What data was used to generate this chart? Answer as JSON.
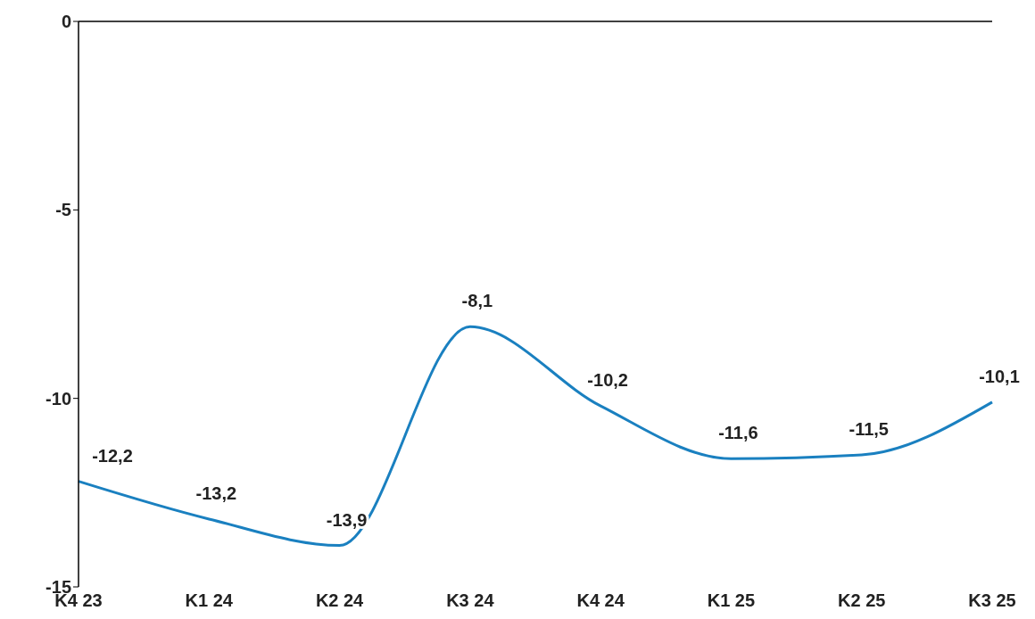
{
  "chart_data": {
    "type": "line",
    "categories": [
      "K4 23",
      "K1 24",
      "K2 24",
      "K3 24",
      "K4 24",
      "K1 25",
      "K2 25",
      "K3 25"
    ],
    "series": [
      {
        "color": "#1a80c0",
        "values": [
          -12.2,
          -13.2,
          -13.9,
          -8.1,
          -10.2,
          -11.6,
          -11.5,
          -10.1
        ],
        "value_labels": [
          "-12,2",
          "-13,2",
          "-13,9",
          "-8,1",
          "-10,2",
          "-11,6",
          "-11,5",
          "-10,1"
        ]
      }
    ],
    "ylim": [
      -15,
      0
    ],
    "yticks": [
      0,
      -5,
      -10,
      -15
    ],
    "marker": "none",
    "line_style": "solid"
  }
}
